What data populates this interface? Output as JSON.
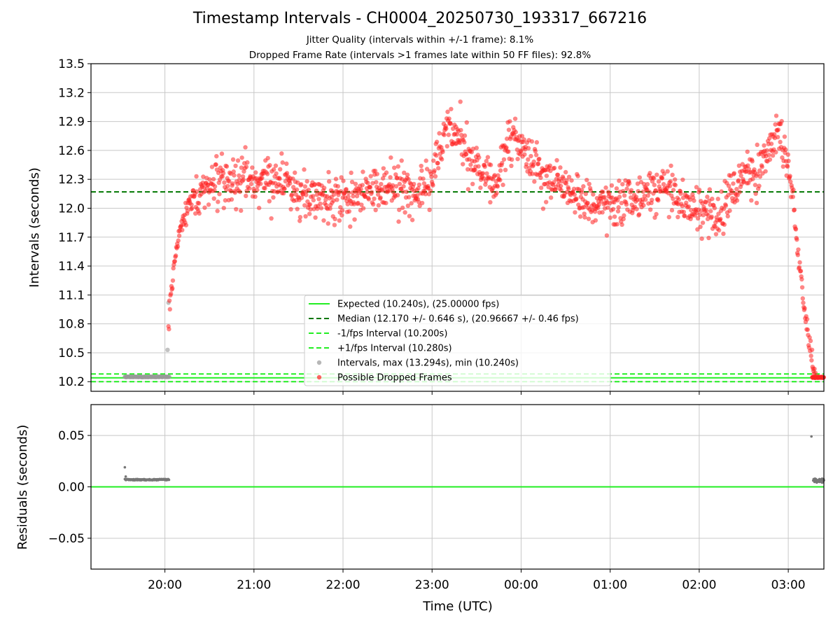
{
  "chart_data": {
    "title": "Timestamp Intervals - CH0004_20250730_193317_667216",
    "subtitle_lines": [
      "Jitter Quality (intervals within +/-1 frame): 8.1%",
      "Dropped Frame Rate (intervals >1 frames late within 50 FF files): 92.8%"
    ],
    "xlabel": "Time (UTC)",
    "x_range_hours": [
      19.17,
      27.4
    ],
    "x_ticks": [
      {
        "hour": 20,
        "label": "20:00"
      },
      {
        "hour": 21,
        "label": "21:00"
      },
      {
        "hour": 22,
        "label": "22:00"
      },
      {
        "hour": 23,
        "label": "23:00"
      },
      {
        "hour": 24,
        "label": "00:00"
      },
      {
        "hour": 25,
        "label": "01:00"
      },
      {
        "hour": 26,
        "label": "02:00"
      },
      {
        "hour": 27,
        "label": "03:00"
      }
    ],
    "top_panel": {
      "type": "scatter",
      "ylabel": "Intervals (seconds)",
      "ylim": [
        10.1,
        13.5
      ],
      "yticks": [
        10.2,
        10.5,
        10.8,
        11.1,
        11.4,
        11.7,
        12.0,
        12.3,
        12.6,
        12.9,
        13.2,
        13.5
      ],
      "ytick_labels": [
        "10.2",
        "10.5",
        "10.8",
        "11.1",
        "11.4",
        "11.7",
        "12.0",
        "12.3",
        "12.6",
        "12.9",
        "13.2",
        "13.5"
      ],
      "grid": true,
      "expected": 10.24,
      "median": 12.17,
      "lower": 10.2,
      "upper": 10.28,
      "max_interval": 13.294,
      "min_interval": 10.24,
      "intervals_profile": [
        [
          19.55,
          10.25
        ],
        [
          20.0,
          10.25
        ],
        [
          20.05,
          10.9
        ],
        [
          20.1,
          11.4
        ],
        [
          20.17,
          11.8
        ],
        [
          20.25,
          12.0
        ],
        [
          20.4,
          12.2
        ],
        [
          20.6,
          12.3
        ],
        [
          21.0,
          12.3
        ],
        [
          21.3,
          12.32
        ],
        [
          21.6,
          12.1
        ],
        [
          21.9,
          12.05
        ],
        [
          22.2,
          12.15
        ],
        [
          22.5,
          12.2
        ],
        [
          22.8,
          12.15
        ],
        [
          23.0,
          12.3
        ],
        [
          23.15,
          12.85
        ],
        [
          23.3,
          12.7
        ],
        [
          23.45,
          12.45
        ],
        [
          23.6,
          12.35
        ],
        [
          23.75,
          12.25
        ],
        [
          23.85,
          12.7
        ],
        [
          23.95,
          12.75
        ],
        [
          24.05,
          12.55
        ],
        [
          24.25,
          12.35
        ],
        [
          24.5,
          12.2
        ],
        [
          24.75,
          12.05
        ],
        [
          25.0,
          12.05
        ],
        [
          25.2,
          12.1
        ],
        [
          25.45,
          12.2
        ],
        [
          25.65,
          12.25
        ],
        [
          25.8,
          12.05
        ],
        [
          26.0,
          12.0
        ],
        [
          26.2,
          11.95
        ],
        [
          26.35,
          12.1
        ],
        [
          26.5,
          12.35
        ],
        [
          26.65,
          12.35
        ],
        [
          26.85,
          12.75
        ],
        [
          26.92,
          12.75
        ],
        [
          27.0,
          12.4
        ],
        [
          27.05,
          12.1
        ],
        [
          27.12,
          11.5
        ],
        [
          27.18,
          10.95
        ],
        [
          27.25,
          10.55
        ],
        [
          27.3,
          10.25
        ],
        [
          27.4,
          10.25
        ]
      ],
      "legend": {
        "location": "lower-center",
        "entries": [
          {
            "label": "Expected (10.240s), (25.00000 fps)",
            "style": "solid",
            "color": "#22ee22"
          },
          {
            "label": "Median (12.170 +/- 0.646 s), (20.96667 +/- 0.46 fps)",
            "style": "dashed",
            "color": "#007700"
          },
          {
            "label": "-1/fps Interval (10.200s)",
            "style": "dashed",
            "color": "#22ee22"
          },
          {
            "label": "+1/fps Interval (10.280s)",
            "style": "dashed",
            "color": "#22ee22"
          },
          {
            "label": "Intervals, max (13.294s), min (10.240s)",
            "style": "marker",
            "color": "#999999"
          },
          {
            "label": "Possible Dropped Frames",
            "style": "marker",
            "color": "#ff2222"
          }
        ]
      }
    },
    "bottom_panel": {
      "type": "scatter",
      "ylabel": "Residuals (seconds)",
      "ylim": [
        -0.08,
        0.08
      ],
      "yticks": [
        0.05,
        0.0,
        -0.05
      ],
      "ytick_labels": [
        "0.05",
        "0.00",
        "−0.05"
      ],
      "grid": true,
      "zero_line": 0.0,
      "residual_points": [
        [
          19.55,
          0.019
        ],
        [
          19.56,
          0.01
        ],
        [
          27.26,
          0.049
        ],
        [
          27.3,
          0.008
        ],
        [
          27.34,
          0.005
        ],
        [
          27.38,
          0.008
        ]
      ],
      "residual_band": {
        "x_start": 19.55,
        "x_end": 20.05,
        "value": 0.007
      }
    },
    "colors": {
      "expected": "#22ee22",
      "median": "#007700",
      "dropped": "#ff2222",
      "interval": "#999999",
      "residual": "#777777",
      "grid": "#c8c8c8"
    }
  }
}
